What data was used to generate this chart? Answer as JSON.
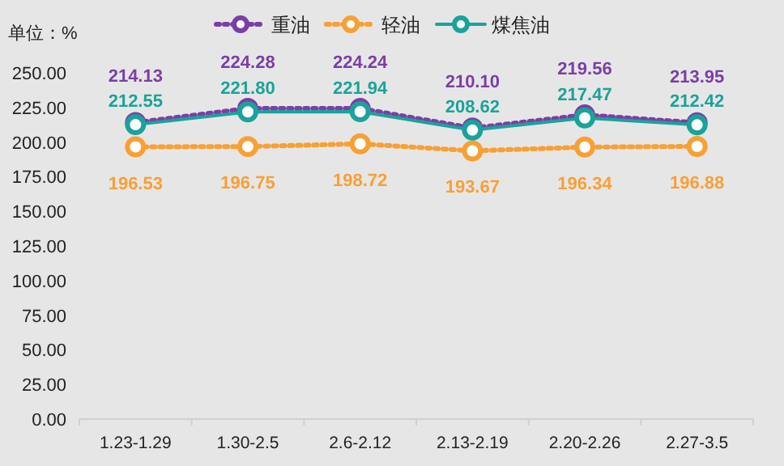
{
  "chart_data": {
    "type": "line",
    "ylabel": "单位：%",
    "categories": [
      "1.23-1.29",
      "1.30-2.5",
      "2.6-2.12",
      "2.13-2.19",
      "2.20-2.26",
      "2.27-3.5"
    ],
    "series": [
      {
        "name": "重油",
        "color": "#7a3fa6",
        "line_style": "dotted",
        "values": [
          214.13,
          224.28,
          224.24,
          210.1,
          219.56,
          213.95
        ],
        "value_labels": [
          "214.13",
          "224.28",
          "224.24",
          "210.10",
          "219.56",
          "213.95"
        ]
      },
      {
        "name": "轻油",
        "color": "#f7a035",
        "line_style": "dotted",
        "values": [
          196.53,
          196.75,
          198.72,
          193.67,
          196.34,
          196.88
        ],
        "value_labels": [
          "196.53",
          "196.75",
          "198.72",
          "193.67",
          "196.34",
          "196.88"
        ]
      },
      {
        "name": "煤焦油",
        "color": "#1aa39a",
        "line_style": "solid",
        "values": [
          212.55,
          221.8,
          221.94,
          208.62,
          217.47,
          212.42
        ],
        "value_labels": [
          "212.55",
          "221.80",
          "221.94",
          "208.62",
          "217.47",
          "212.42"
        ]
      }
    ],
    "ylim": [
      0,
      250
    ],
    "yticks": [
      {
        "value": 0,
        "label": "0.00"
      },
      {
        "value": 25,
        "label": "25.00"
      },
      {
        "value": 50,
        "label": "50.00"
      },
      {
        "value": 75,
        "label": "75.00"
      },
      {
        "value": 100,
        "label": "100.00"
      },
      {
        "value": 125,
        "label": "125.00"
      },
      {
        "value": 150,
        "label": "150.00"
      },
      {
        "value": 175,
        "label": "175.00"
      },
      {
        "value": 200,
        "label": "200.00"
      },
      {
        "value": 225,
        "label": "225.00"
      },
      {
        "value": 250,
        "label": "250.00"
      }
    ],
    "grid": false,
    "legend": "top",
    "marker": "circle"
  }
}
